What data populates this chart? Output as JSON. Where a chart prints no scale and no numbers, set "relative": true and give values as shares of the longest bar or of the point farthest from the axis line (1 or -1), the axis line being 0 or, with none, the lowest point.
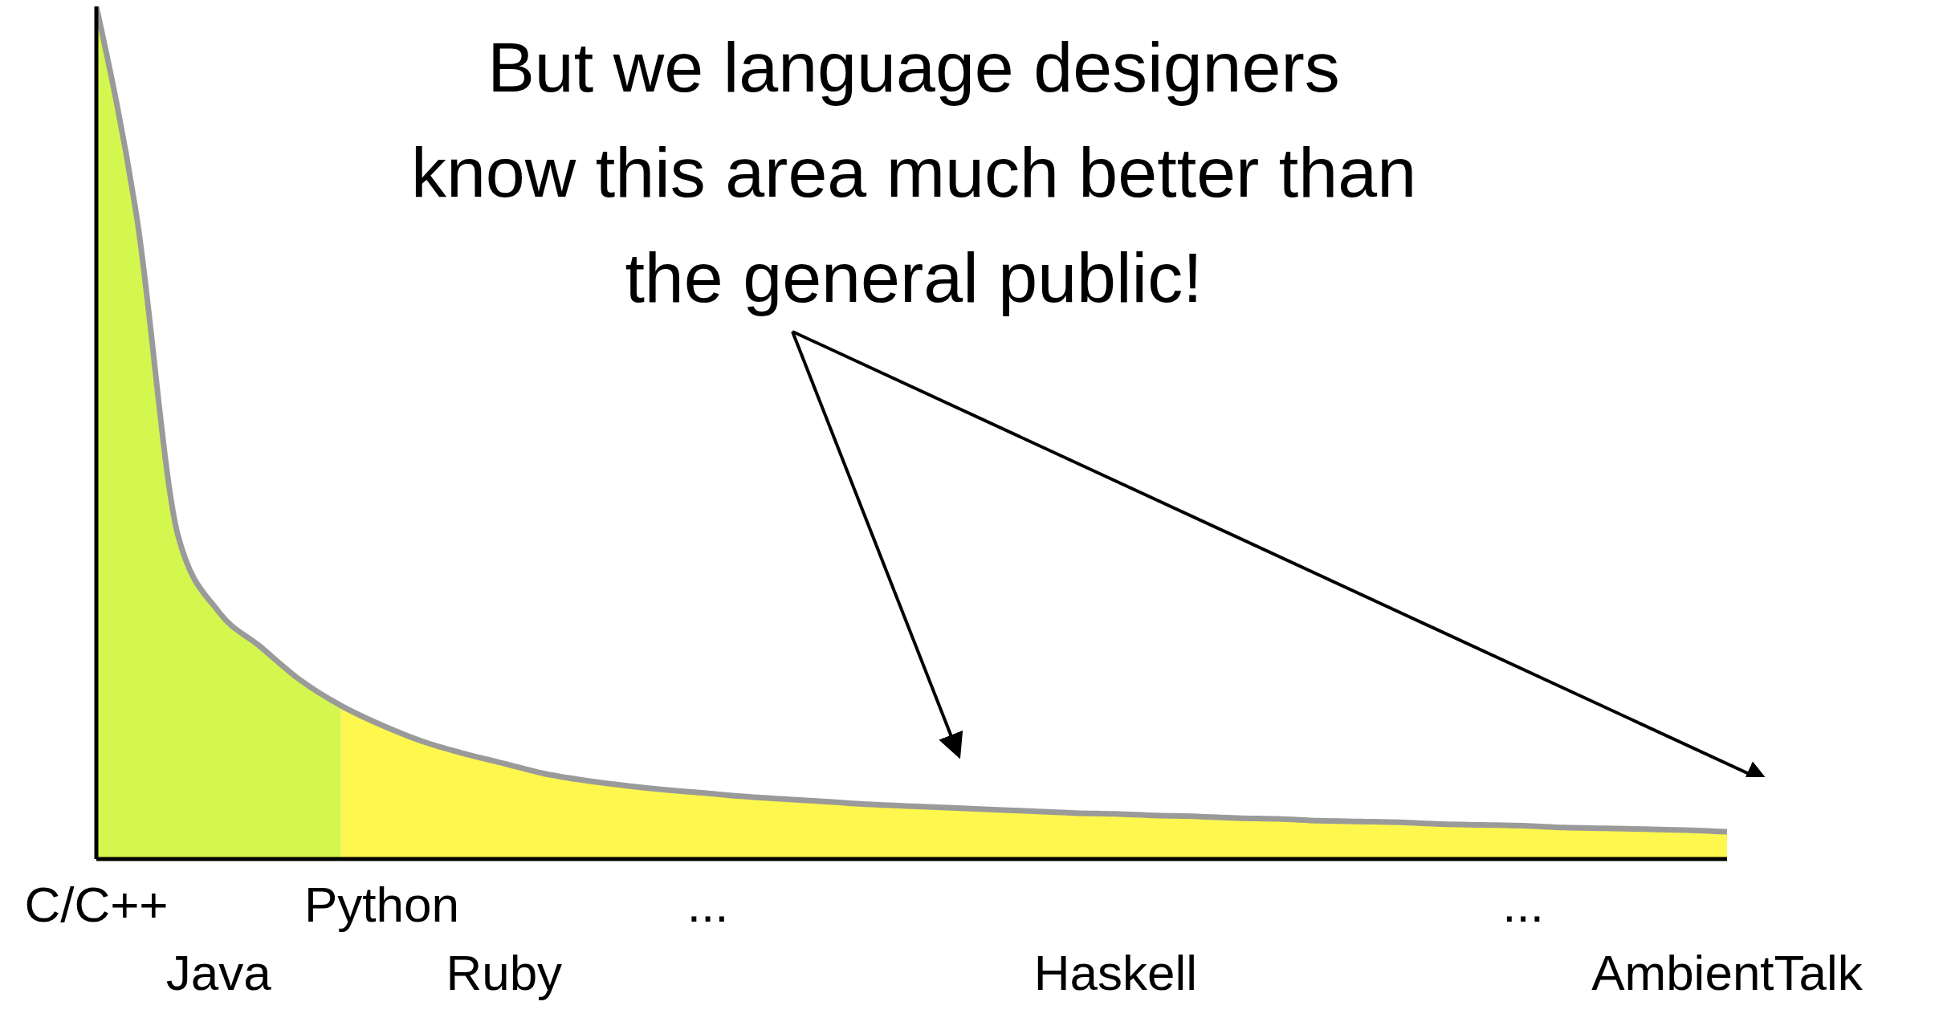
{
  "chart_data": {
    "type": "area",
    "relative": true,
    "categories": [
      "C/C++",
      null,
      null,
      "Java",
      null,
      null,
      null,
      "Python",
      null,
      null,
      "Ruby",
      null,
      null,
      null,
      null,
      "...",
      null,
      null,
      null,
      null,
      null,
      null,
      null,
      null,
      null,
      "Haskell",
      null,
      null,
      null,
      null,
      null,
      null,
      null,
      null,
      null,
      "...",
      null,
      null,
      null,
      null,
      "AmbientTalk"
    ],
    "series": [
      {
        "color": "#d4f74f",
        "values": [
          1,
          0.75,
          0.38,
          0.29,
          0.25,
          0.21,
          0.18,
          null,
          null,
          null,
          null,
          null,
          null,
          null,
          null,
          null,
          null,
          null,
          null,
          null,
          null,
          null,
          null,
          null,
          null,
          null,
          null,
          null,
          null,
          null,
          null,
          null,
          null,
          null,
          null,
          null,
          null,
          null,
          null,
          null,
          null
        ]
      },
      {
        "color": "#fef74e",
        "values": [
          null,
          null,
          null,
          null,
          null,
          null,
          0.18,
          0.157,
          0.138,
          0.124,
          0.112,
          0.1,
          0.092,
          0.086,
          0.081,
          0.077,
          0.073,
          0.07,
          0.067,
          0.064,
          0.062,
          0.06,
          0.058,
          0.056,
          0.054,
          0.053,
          0.051,
          0.05,
          0.048,
          0.047,
          0.045,
          0.044,
          0.043,
          0.041,
          0.04,
          0.039,
          0.037,
          0.036,
          0.035,
          0.034,
          0.032
        ]
      },
      {
        "type": "line",
        "color": "#9a9a9a",
        "values": [
          1,
          0.75,
          0.38,
          0.29,
          0.25,
          0.21,
          0.18,
          0.157,
          0.138,
          0.124,
          0.112,
          0.1,
          0.092,
          0.086,
          0.081,
          0.077,
          0.073,
          0.07,
          0.067,
          0.064,
          0.062,
          0.06,
          0.058,
          0.056,
          0.054,
          0.053,
          0.051,
          0.05,
          0.048,
          0.047,
          0.045,
          0.044,
          0.043,
          0.041,
          0.04,
          0.039,
          0.037,
          0.036,
          0.035,
          0.034,
          0.032
        ]
      }
    ],
    "annotations": [
      "But we language designers know this area much better than the general public!"
    ]
  }
}
